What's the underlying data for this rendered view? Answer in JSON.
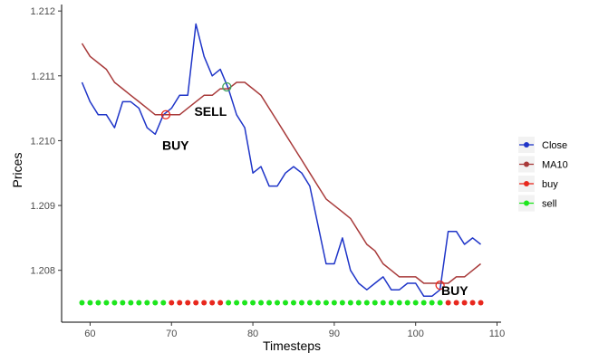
{
  "chart_data": {
    "type": "line",
    "title": "",
    "xlabel": "Timesteps",
    "ylabel": "Prices",
    "xlim": [
      56.5,
      110.5
    ],
    "ylim": [
      1.2072,
      1.2121
    ],
    "x_ticks": [
      60,
      70,
      80,
      90,
      100,
      110
    ],
    "x_tick_labels": [
      "60",
      "70",
      "80",
      "90",
      "100",
      "110"
    ],
    "y_ticks": [
      1.208,
      1.209,
      1.21,
      1.211,
      1.212
    ],
    "y_tick_labels": [
      "1.208",
      "1.209",
      "1.210",
      "1.211",
      "1.212"
    ],
    "grid": false,
    "legend_position": "right",
    "series": [
      {
        "name": "Close",
        "color": "#1f35c8",
        "x": [
          59,
          60,
          61,
          62,
          63,
          64,
          65,
          66,
          67,
          68,
          69,
          70,
          71,
          72,
          73,
          74,
          75,
          76,
          77,
          78,
          79,
          80,
          81,
          82,
          83,
          84,
          85,
          86,
          87,
          88,
          89,
          90,
          91,
          92,
          93,
          94,
          95,
          96,
          97,
          98,
          99,
          100,
          101,
          102,
          103,
          104,
          105,
          106,
          107,
          108
        ],
        "values": [
          1.2109,
          1.2106,
          1.2104,
          1.2104,
          1.2102,
          1.2106,
          1.2106,
          1.2105,
          1.2102,
          1.2101,
          1.2104,
          1.2105,
          1.2107,
          1.2107,
          1.2118,
          1.2113,
          1.211,
          1.2111,
          1.2108,
          1.2104,
          1.2102,
          1.2095,
          1.2096,
          1.2093,
          1.2093,
          1.2095,
          1.2096,
          1.2095,
          1.2093,
          1.2087,
          1.2081,
          1.2081,
          1.2085,
          1.208,
          1.2078,
          1.2077,
          1.2078,
          1.2079,
          1.2077,
          1.2077,
          1.2078,
          1.2078,
          1.2076,
          1.2076,
          1.2077,
          1.2086,
          1.2086,
          1.2084,
          1.2085,
          1.2084
        ]
      },
      {
        "name": "MA10",
        "color": "#a83a3a",
        "x": [
          59,
          60,
          61,
          62,
          63,
          64,
          65,
          66,
          67,
          68,
          69,
          70,
          71,
          72,
          73,
          74,
          75,
          76,
          77,
          78,
          79,
          80,
          81,
          82,
          83,
          84,
          85,
          86,
          87,
          88,
          89,
          90,
          91,
          92,
          93,
          94,
          95,
          96,
          97,
          98,
          99,
          100,
          101,
          102,
          103,
          104,
          105,
          106,
          107,
          108
        ],
        "values": [
          1.2115,
          1.2113,
          1.2112,
          1.2111,
          1.2109,
          1.2108,
          1.2107,
          1.2106,
          1.2105,
          1.2104,
          1.2104,
          1.2104,
          1.2104,
          1.2105,
          1.2106,
          1.2107,
          1.2107,
          1.2108,
          1.2108,
          1.2109,
          1.2109,
          1.2108,
          1.2107,
          1.2105,
          1.2103,
          1.2101,
          1.2099,
          1.2097,
          1.2095,
          1.2093,
          1.2091,
          1.209,
          1.2089,
          1.2088,
          1.2086,
          1.2084,
          1.2083,
          1.2081,
          1.208,
          1.2079,
          1.2079,
          1.2079,
          1.2078,
          1.2078,
          1.2078,
          1.2078,
          1.2079,
          1.2079,
          1.208,
          1.2081
        ]
      }
    ],
    "signal_series": [
      {
        "name": "buy",
        "color": "#e8281e",
        "y": 1.2075,
        "x": [
          70,
          71,
          72,
          73,
          74,
          75,
          76,
          104,
          105,
          106,
          107,
          108
        ]
      },
      {
        "name": "sell",
        "color": "#1ee61e",
        "y": 1.2075,
        "x": [
          59,
          60,
          61,
          62,
          63,
          64,
          65,
          66,
          67,
          68,
          69,
          77,
          78,
          79,
          80,
          81,
          82,
          83,
          84,
          85,
          86,
          87,
          88,
          89,
          90,
          91,
          92,
          93,
          94,
          95,
          96,
          97,
          98,
          99,
          100,
          101,
          102,
          103
        ]
      }
    ],
    "annotations": [
      {
        "text": "BUY",
        "x": 69.3,
        "y": 1.2104,
        "marker_color": "#e8281e",
        "label_x": 70.5,
        "label_y": 1.20986
      },
      {
        "text": "SELL",
        "x": 76.8,
        "y": 1.21083,
        "marker_color": "#3aa05a",
        "label_x": 74.8,
        "label_y": 1.21038
      },
      {
        "text": "BUY",
        "x": 103.0,
        "y": 1.20777,
        "marker_color": "#e8281e",
        "label_x": 104.8,
        "label_y": 1.20762
      }
    ],
    "legend": [
      {
        "label": "Close",
        "color": "#1f35c8"
      },
      {
        "label": "MA10",
        "color": "#a83a3a"
      },
      {
        "label": "buy",
        "color": "#e8281e"
      },
      {
        "label": "sell",
        "color": "#1ee61e"
      }
    ]
  }
}
